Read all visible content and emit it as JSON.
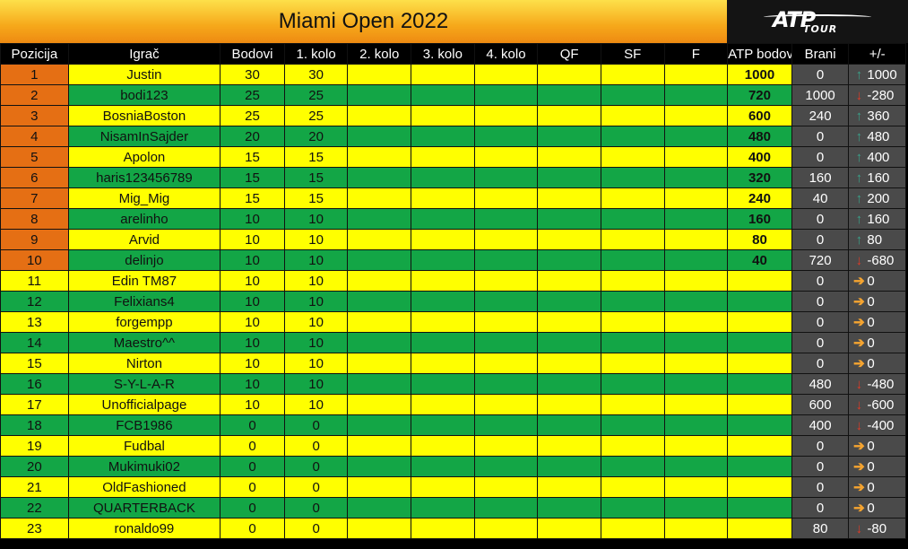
{
  "title": "Miami Open 2022",
  "logo": {
    "main": "ATP",
    "sub": "TOUR"
  },
  "columns": [
    "Pozicija",
    "Igrač",
    "Bodovi",
    "1. kolo",
    "2. kolo",
    "3. kolo",
    "4. kolo",
    "QF",
    "SF",
    "F",
    "ATP bodovi",
    "Brani",
    "+/-"
  ],
  "colors": {
    "yellow": "#ffff00",
    "green": "#13a646",
    "orange": "#e56f14",
    "dark": "#4a4a4a",
    "header": "#000000"
  },
  "rows": [
    {
      "pos": "1",
      "player": "Justin",
      "bodovi": "30",
      "k1": "30",
      "atp": "1000",
      "brani": "0",
      "dir": "up",
      "diff": "1000"
    },
    {
      "pos": "2",
      "player": "bodi123",
      "bodovi": "25",
      "k1": "25",
      "atp": "720",
      "brani": "1000",
      "dir": "down",
      "diff": "-280"
    },
    {
      "pos": "3",
      "player": "BosniaBoston",
      "bodovi": "25",
      "k1": "25",
      "atp": "600",
      "brani": "240",
      "dir": "up",
      "diff": "360"
    },
    {
      "pos": "4",
      "player": "NisamInSajder",
      "bodovi": "20",
      "k1": "20",
      "atp": "480",
      "brani": "0",
      "dir": "up",
      "diff": "480"
    },
    {
      "pos": "5",
      "player": "Apolon",
      "bodovi": "15",
      "k1": "15",
      "atp": "400",
      "brani": "0",
      "dir": "up",
      "diff": "400"
    },
    {
      "pos": "6",
      "player": "haris123456789",
      "bodovi": "15",
      "k1": "15",
      "atp": "320",
      "brani": "160",
      "dir": "up",
      "diff": "160"
    },
    {
      "pos": "7",
      "player": "Mig_Mig",
      "bodovi": "15",
      "k1": "15",
      "atp": "240",
      "brani": "40",
      "dir": "up",
      "diff": "200"
    },
    {
      "pos": "8",
      "player": "arelinho",
      "bodovi": "10",
      "k1": "10",
      "atp": "160",
      "brani": "0",
      "dir": "up",
      "diff": "160"
    },
    {
      "pos": "9",
      "player": "Arvid",
      "bodovi": "10",
      "k1": "10",
      "atp": "80",
      "brani": "0",
      "dir": "up",
      "diff": "80"
    },
    {
      "pos": "10",
      "player": "delinjo",
      "bodovi": "10",
      "k1": "10",
      "atp": "40",
      "brani": "720",
      "dir": "down",
      "diff": "-680"
    },
    {
      "pos": "11",
      "player": "Edin TM87",
      "bodovi": "10",
      "k1": "10",
      "atp": "",
      "brani": "0",
      "dir": "right",
      "diff": "0"
    },
    {
      "pos": "12",
      "player": "Felixians4",
      "bodovi": "10",
      "k1": "10",
      "atp": "",
      "brani": "0",
      "dir": "right",
      "diff": "0"
    },
    {
      "pos": "13",
      "player": "forgempp",
      "bodovi": "10",
      "k1": "10",
      "atp": "",
      "brani": "0",
      "dir": "right",
      "diff": "0"
    },
    {
      "pos": "14",
      "player": "Maestro^^",
      "bodovi": "10",
      "k1": "10",
      "atp": "",
      "brani": "0",
      "dir": "right",
      "diff": "0"
    },
    {
      "pos": "15",
      "player": "Nirton",
      "bodovi": "10",
      "k1": "10",
      "atp": "",
      "brani": "0",
      "dir": "right",
      "diff": "0"
    },
    {
      "pos": "16",
      "player": "S-Y-L-A-R",
      "bodovi": "10",
      "k1": "10",
      "atp": "",
      "brani": "480",
      "dir": "down",
      "diff": "-480"
    },
    {
      "pos": "17",
      "player": "Unofficialpage",
      "bodovi": "10",
      "k1": "10",
      "atp": "",
      "brani": "600",
      "dir": "down",
      "diff": "-600"
    },
    {
      "pos": "18",
      "player": "FCB1986",
      "bodovi": "0",
      "k1": "0",
      "atp": "",
      "brani": "400",
      "dir": "down",
      "diff": "-400"
    },
    {
      "pos": "19",
      "player": "Fudbal",
      "bodovi": "0",
      "k1": "0",
      "atp": "",
      "brani": "0",
      "dir": "right",
      "diff": "0"
    },
    {
      "pos": "20",
      "player": "Mukimuki02",
      "bodovi": "0",
      "k1": "0",
      "atp": "",
      "brani": "0",
      "dir": "right",
      "diff": "0"
    },
    {
      "pos": "21",
      "player": "OldFashioned",
      "bodovi": "0",
      "k1": "0",
      "atp": "",
      "brani": "0",
      "dir": "right",
      "diff": "0"
    },
    {
      "pos": "22",
      "player": "QUARTERBACK",
      "bodovi": "0",
      "k1": "0",
      "atp": "",
      "brani": "0",
      "dir": "right",
      "diff": "0"
    },
    {
      "pos": "23",
      "player": "ronaldo99",
      "bodovi": "0",
      "k1": "0",
      "atp": "",
      "brani": "80",
      "dir": "down",
      "diff": "-80"
    }
  ]
}
